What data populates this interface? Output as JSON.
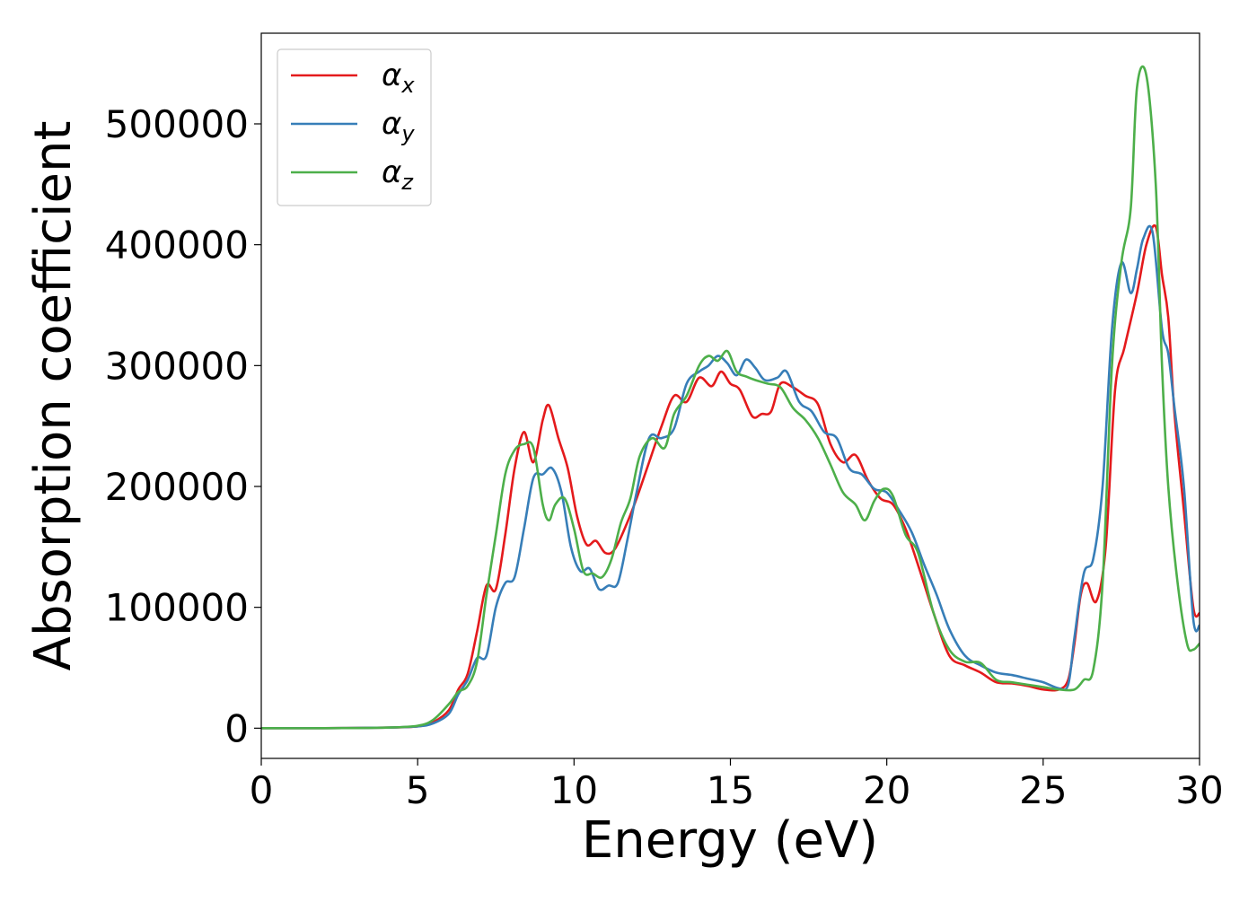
{
  "chart_data": {
    "type": "line",
    "title": "",
    "xlabel": "Energy (eV)",
    "ylabel": "Absorption coefficient",
    "xlim": [
      0,
      30
    ],
    "ylim": [
      -25000,
      575000
    ],
    "xticks": [
      0,
      5,
      10,
      15,
      20,
      25,
      30
    ],
    "xtick_labels": [
      "0",
      "5",
      "10",
      "15",
      "20",
      "25",
      "30"
    ],
    "yticks": [
      0,
      100000,
      200000,
      300000,
      400000,
      500000
    ],
    "ytick_labels": [
      "0",
      "100000",
      "200000",
      "300000",
      "400000",
      "500000"
    ],
    "grid": false,
    "legend_position": "top-left",
    "series": [
      {
        "name": "α_x",
        "legend_base": "α",
        "legend_sub": "x",
        "color": "#e41a1c",
        "x": [
          0,
          2,
          4,
          5,
          5.5,
          6,
          6.3,
          6.6,
          6.9,
          7.2,
          7.5,
          7.8,
          8.1,
          8.4,
          8.7,
          9.0,
          9.2,
          9.5,
          9.8,
          10.1,
          10.4,
          10.7,
          11.0,
          11.3,
          11.7,
          12.0,
          12.4,
          12.8,
          13.2,
          13.6,
          14.0,
          14.4,
          14.7,
          15.0,
          15.3,
          15.7,
          16.0,
          16.3,
          16.6,
          17.0,
          17.4,
          17.8,
          18.2,
          18.6,
          19.0,
          19.4,
          19.8,
          20.2,
          20.6,
          21.0,
          21.5,
          22.0,
          22.5,
          23.0,
          23.5,
          24.0,
          24.5,
          25.0,
          25.5,
          25.8,
          26.0,
          26.2,
          26.4,
          26.7,
          27.0,
          27.3,
          27.6,
          28.0,
          28.3,
          28.6,
          28.8,
          29.0,
          29.2,
          29.5,
          29.8,
          30.0
        ],
        "y": [
          0,
          0,
          500,
          1500,
          5000,
          15000,
          32000,
          45000,
          80000,
          118000,
          115000,
          160000,
          215000,
          245000,
          220000,
          255000,
          267000,
          240000,
          215000,
          175000,
          152000,
          155000,
          145000,
          148000,
          170000,
          190000,
          220000,
          250000,
          275000,
          270000,
          290000,
          283000,
          295000,
          285000,
          280000,
          258000,
          260000,
          262000,
          285000,
          282000,
          275000,
          268000,
          235000,
          220000,
          226000,
          205000,
          190000,
          185000,
          165000,
          135000,
          95000,
          60000,
          52000,
          46000,
          38000,
          37000,
          35000,
          32000,
          32000,
          40000,
          70000,
          110000,
          120000,
          105000,
          150000,
          280000,
          315000,
          360000,
          400000,
          415000,
          375000,
          340000,
          260000,
          180000,
          100000,
          95000
        ]
      },
      {
        "name": "α_y",
        "legend_base": "α",
        "legend_sub": "y",
        "color": "#377eb8",
        "x": [
          0,
          2,
          4,
          5,
          5.5,
          6,
          6.3,
          6.6,
          6.9,
          7.2,
          7.5,
          7.8,
          8.1,
          8.4,
          8.7,
          9.0,
          9.3,
          9.6,
          9.9,
          10.2,
          10.5,
          10.8,
          11.1,
          11.4,
          11.7,
          12.0,
          12.4,
          12.8,
          13.2,
          13.6,
          14.0,
          14.3,
          14.6,
          14.9,
          15.2,
          15.5,
          15.8,
          16.1,
          16.5,
          16.8,
          17.2,
          17.6,
          18.0,
          18.4,
          18.8,
          19.2,
          19.6,
          20.0,
          20.4,
          20.8,
          21.2,
          21.6,
          22.0,
          22.5,
          23.0,
          23.5,
          24.0,
          24.5,
          25.0,
          25.5,
          25.8,
          26.0,
          26.3,
          26.6,
          26.9,
          27.2,
          27.5,
          27.8,
          28.0,
          28.2,
          28.5,
          28.8,
          29.0,
          29.2,
          29.5,
          29.8,
          30.0
        ],
        "y": [
          0,
          0,
          500,
          1500,
          4000,
          12000,
          28000,
          40000,
          58000,
          60000,
          100000,
          120000,
          125000,
          165000,
          207000,
          210000,
          215000,
          195000,
          150000,
          130000,
          132000,
          115000,
          118000,
          120000,
          155000,
          195000,
          240000,
          240000,
          248000,
          285000,
          295000,
          300000,
          308000,
          302000,
          292000,
          305000,
          298000,
          288000,
          290000,
          295000,
          270000,
          262000,
          245000,
          240000,
          215000,
          210000,
          198000,
          195000,
          180000,
          162000,
          135000,
          110000,
          82000,
          60000,
          52000,
          46000,
          44000,
          41000,
          38000,
          33000,
          36000,
          75000,
          128000,
          140000,
          200000,
          330000,
          385000,
          360000,
          380000,
          405000,
          410000,
          330000,
          310000,
          265000,
          200000,
          90000,
          85000
        ]
      },
      {
        "name": "α_z",
        "legend_base": "α",
        "legend_sub": "z",
        "color": "#4daf4a",
        "x": [
          0,
          2,
          4,
          5,
          5.5,
          6,
          6.3,
          6.6,
          6.9,
          7.2,
          7.5,
          7.8,
          8.1,
          8.4,
          8.7,
          9.0,
          9.2,
          9.4,
          9.7,
          10.0,
          10.3,
          10.6,
          10.9,
          11.2,
          11.5,
          11.8,
          12.1,
          12.5,
          12.9,
          13.2,
          13.6,
          14.0,
          14.3,
          14.6,
          14.9,
          15.2,
          15.5,
          15.8,
          16.2,
          16.6,
          17.0,
          17.4,
          17.8,
          18.2,
          18.6,
          19.0,
          19.3,
          19.6,
          19.9,
          20.2,
          20.6,
          21.0,
          21.5,
          22.0,
          22.5,
          23.0,
          23.5,
          24.0,
          24.5,
          25.0,
          25.5,
          26.0,
          26.3,
          26.6,
          26.9,
          27.2,
          27.5,
          27.8,
          28.0,
          28.3,
          28.6,
          28.8,
          29.0,
          29.3,
          29.6,
          29.8,
          30.0
        ],
        "y": [
          0,
          0,
          500,
          2000,
          7000,
          20000,
          30000,
          35000,
          55000,
          110000,
          160000,
          210000,
          230000,
          235000,
          232000,
          185000,
          172000,
          185000,
          190000,
          165000,
          130000,
          128000,
          125000,
          140000,
          170000,
          190000,
          225000,
          240000,
          232000,
          260000,
          275000,
          300000,
          308000,
          304000,
          312000,
          295000,
          291000,
          288000,
          285000,
          282000,
          265000,
          255000,
          240000,
          218000,
          195000,
          185000,
          172000,
          188000,
          198000,
          192000,
          160000,
          145000,
          95000,
          65000,
          55000,
          54000,
          40000,
          38000,
          36000,
          34000,
          32000,
          32000,
          40000,
          48000,
          120000,
          300000,
          385000,
          430000,
          530000,
          540000,
          450000,
          300000,
          200000,
          120000,
          70000,
          65000,
          70000
        ]
      }
    ]
  }
}
